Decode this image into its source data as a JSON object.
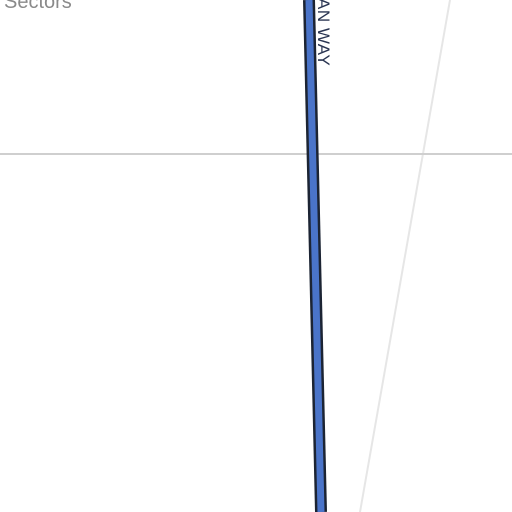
{
  "map": {
    "area_label": "Sectors",
    "street_label": "AN WAY",
    "colors": {
      "background": "#ffffff",
      "road_fill": "#4a74c9",
      "road_outline": "#1c2433",
      "grid_line": "#cfcfcf",
      "minor_road": "#e6e6e6",
      "area_label_text": "#8a8a8a",
      "street_label_text": "#2a3552"
    }
  }
}
